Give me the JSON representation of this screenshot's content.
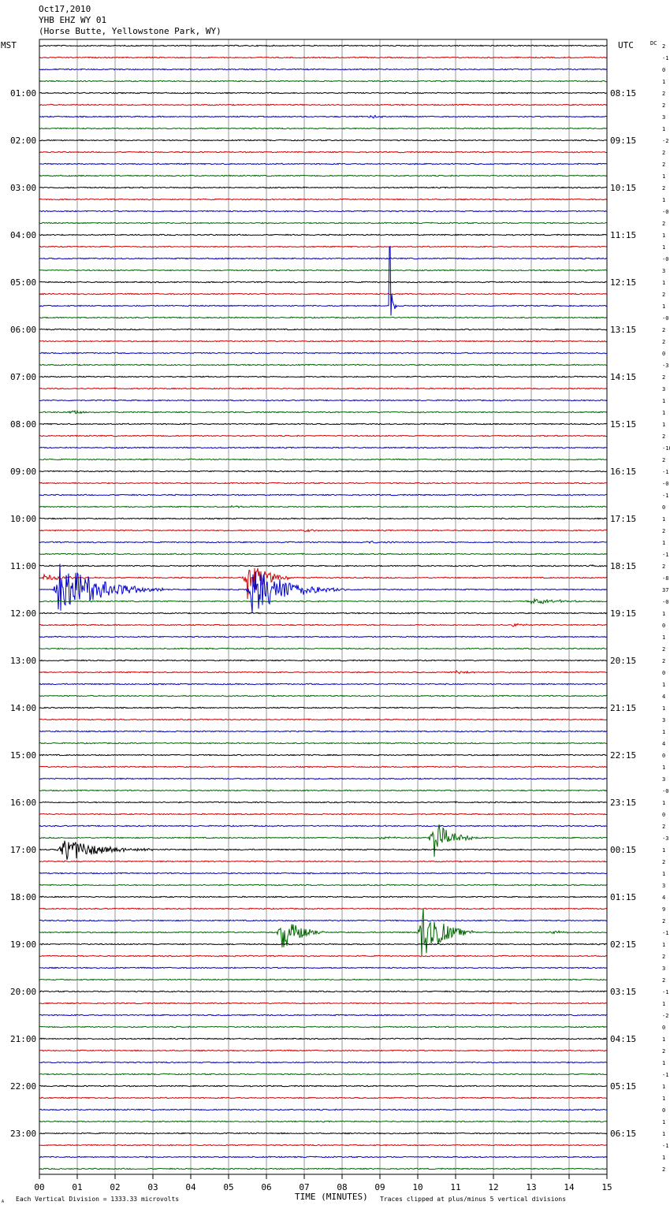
{
  "header": {
    "date": "Oct17,2010",
    "station": "YHB EHZ WY 01",
    "location": "(Horse Butte, Yellowstone Park, WY)"
  },
  "left_axis_label": "MST",
  "right_axis_label": "UTC",
  "dc_label": "DC",
  "footer": {
    "scale": "Each Vertical Division = 1333.33 microvolts",
    "xlabel": "TIME (MINUTES)",
    "clip_note": "Traces clipped at plus/minus 5 vertical divisions",
    "corner_mark": "A"
  },
  "colors": {
    "trace_cycle": [
      "#000000",
      "#d40000",
      "#0000cc",
      "#006600"
    ],
    "grid": "#999999"
  },
  "chart_data": {
    "type": "line",
    "description_units": "x in minutes within each 15-minute row; 96 rows from 00:00 to 23:45 MST",
    "xlim": [
      0,
      15
    ],
    "x_ticks": [
      "00",
      "01",
      "02",
      "03",
      "04",
      "05",
      "06",
      "07",
      "08",
      "09",
      "10",
      "11",
      "12",
      "13",
      "14",
      "15"
    ],
    "rows": 96,
    "row_minutes": 15,
    "mst_labels": [
      "01:00",
      "02:00",
      "03:00",
      "04:00",
      "05:00",
      "06:00",
      "07:00",
      "08:00",
      "09:00",
      "10:00",
      "11:00",
      "12:00",
      "13:00",
      "14:00",
      "15:00",
      "16:00",
      "17:00",
      "18:00",
      "19:00",
      "20:00",
      "21:00",
      "22:00",
      "23:00"
    ],
    "utc_labels": [
      "08:15",
      "09:15",
      "10:15",
      "11:15",
      "12:15",
      "13:15",
      "14:15",
      "15:15",
      "16:15",
      "17:15",
      "18:15",
      "19:15",
      "20:15",
      "21:15",
      "22:15",
      "23:15",
      "00:15",
      "01:15",
      "02:15",
      "03:15",
      "04:15",
      "05:15",
      "06:15"
    ],
    "dc_offsets": [
      "2",
      "-1",
      "0",
      "1",
      "2",
      "2",
      "3",
      "1",
      "-2",
      "2",
      "2",
      "1",
      "2",
      "1",
      "-0",
      "2",
      "1",
      "1",
      "-0",
      "3",
      "1",
      "2",
      "1",
      "-0",
      "2",
      "2",
      "0",
      "-3",
      "2",
      "3",
      "1",
      "1",
      "1",
      "2",
      "-16",
      "2",
      "-1",
      "-0",
      "-1",
      "0",
      "1",
      "2",
      "1",
      "-1",
      "2",
      "-8",
      "37",
      "-0",
      "1",
      "0",
      "1",
      "2",
      "2",
      "0",
      "1",
      "4",
      "1",
      "3",
      "1",
      "4",
      "0",
      "1",
      "3",
      "-0",
      "1",
      "0",
      "2",
      "-3",
      "1",
      "2",
      "1",
      "3",
      "4",
      "9",
      "2",
      "-1",
      "1",
      "2",
      "3",
      "2",
      "-1",
      "1",
      "-2",
      "0",
      "1",
      "2",
      "1",
      "-1",
      "1",
      "1",
      "0",
      "1",
      "1",
      "-1",
      "1",
      "2"
    ],
    "events": [
      {
        "row": 6,
        "x": 8.7,
        "amp": 3,
        "dur": 0.8
      },
      {
        "row": 22,
        "x": 9.25,
        "amp": 75,
        "dur": 0.25,
        "spike": true
      },
      {
        "row": 31,
        "x": 0.8,
        "amp": 5,
        "dur": 0.8
      },
      {
        "row": 39,
        "x": 5.0,
        "amp": 2,
        "dur": 1.2
      },
      {
        "row": 41,
        "x": 7.0,
        "amp": 2,
        "dur": 1.0
      },
      {
        "row": 42,
        "x": 8.5,
        "amp": 1.6,
        "dur": 2.0
      },
      {
        "row": 44,
        "x": 14.5,
        "amp": 2,
        "dur": 1.0
      },
      {
        "row": 45,
        "x": 0.1,
        "amp": 4,
        "dur": 2.0
      },
      {
        "row": 45,
        "x": 5.5,
        "amp": 35,
        "dur": 1.2
      },
      {
        "row": 46,
        "x": 0.5,
        "amp": 45,
        "dur": 2.8
      },
      {
        "row": 46,
        "x": 5.6,
        "amp": 40,
        "dur": 2.5
      },
      {
        "row": 47,
        "x": 13.0,
        "amp": 5,
        "dur": 2.0
      },
      {
        "row": 49,
        "x": 12.5,
        "amp": 2,
        "dur": 1.5
      },
      {
        "row": 53,
        "x": 11.0,
        "amp": 2,
        "dur": 1.5
      },
      {
        "row": 67,
        "x": 9.0,
        "amp": 2,
        "dur": 1.5
      },
      {
        "row": 67,
        "x": 10.4,
        "amp": 30,
        "dur": 1.2
      },
      {
        "row": 68,
        "x": 0.6,
        "amp": 20,
        "dur": 2.5
      },
      {
        "row": 75,
        "x": 6.4,
        "amp": 30,
        "dur": 1.2
      },
      {
        "row": 75,
        "x": 10.1,
        "amp": 50,
        "dur": 1.4
      },
      {
        "row": 75,
        "x": 13.5,
        "amp": 2,
        "dur": 1.5
      }
    ]
  }
}
